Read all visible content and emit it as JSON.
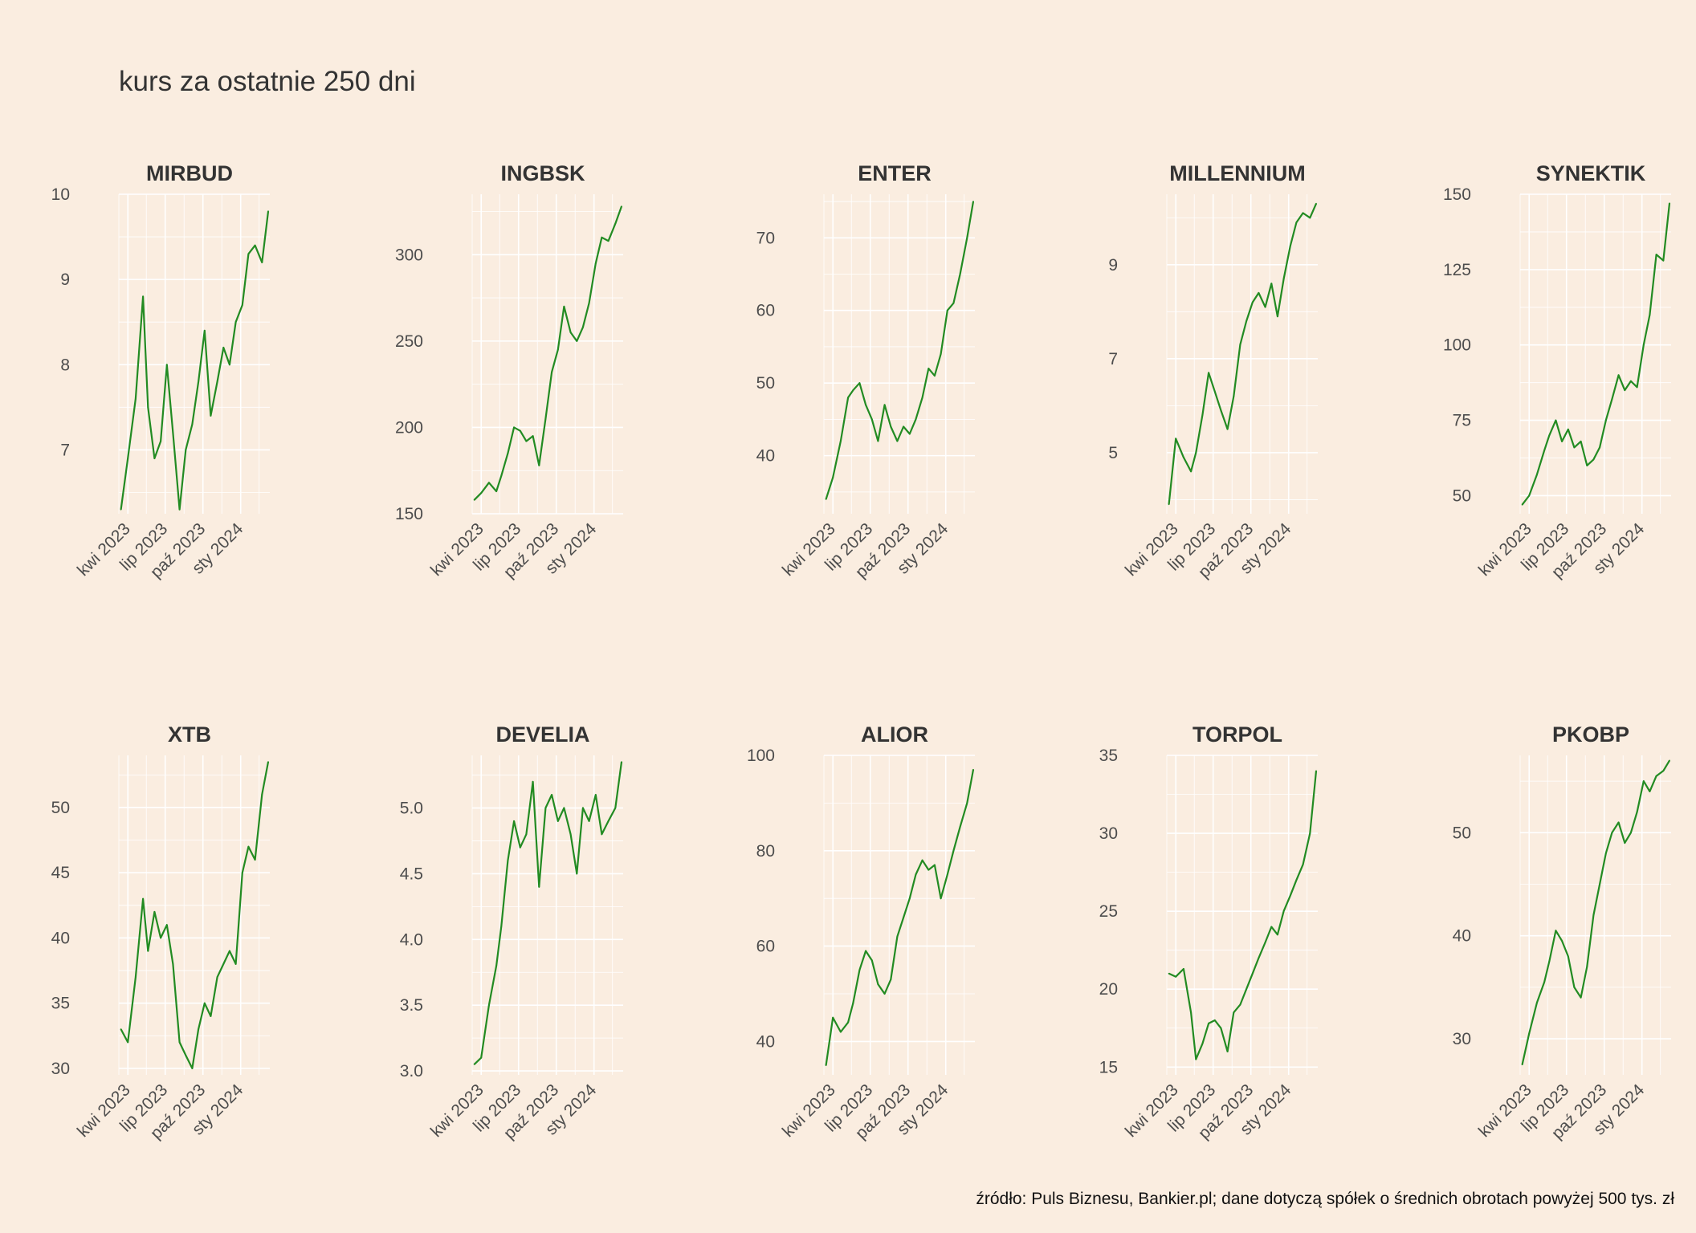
{
  "title": "kurs za ostatnie 250 dni",
  "caption": "źródło: Puls Biznesu, Bankier.pl; dane dotyczą spółek o średnich obrotach powyżej 500 tys. zł",
  "colors": {
    "background": "#FAEDE0",
    "line": "#228B22",
    "grid": "#FFFFFF",
    "text": "#4D4D4D"
  },
  "chart_data": [
    {
      "type": "line",
      "title": "MIRBUD",
      "x_ticks": [
        "kwi 2023",
        "lip 2023",
        "paź 2023",
        "sty 2024"
      ],
      "y_ticks": [
        7,
        8,
        9,
        10
      ],
      "ylim": [
        6.25,
        10
      ],
      "x": [
        "2023-03-15",
        "2023-04-01",
        "2023-04-20",
        "2023-05-08",
        "2023-05-20",
        "2023-06-05",
        "2023-06-20",
        "2023-07-05",
        "2023-07-20",
        "2023-08-05",
        "2023-08-20",
        "2023-09-05",
        "2023-09-20",
        "2023-10-05",
        "2023-10-20",
        "2023-11-05",
        "2023-11-20",
        "2023-12-05",
        "2023-12-20",
        "2024-01-05",
        "2024-01-20",
        "2024-02-05",
        "2024-02-22",
        "2024-03-08"
      ],
      "y": [
        6.3,
        6.9,
        7.6,
        8.8,
        7.5,
        6.9,
        7.1,
        8.0,
        7.2,
        6.3,
        7.0,
        7.3,
        7.8,
        8.4,
        7.4,
        7.8,
        8.2,
        8.0,
        8.5,
        8.7,
        9.3,
        9.4,
        9.2,
        9.8
      ]
    },
    {
      "type": "line",
      "title": "INGBSK",
      "x_ticks": [
        "kwi 2023",
        "lip 2023",
        "paź 2023",
        "sty 2024"
      ],
      "y_ticks": [
        150,
        200,
        250,
        300
      ],
      "ylim": [
        150,
        335
      ],
      "x": [
        "2023-03-15",
        "2023-04-01",
        "2023-04-20",
        "2023-05-08",
        "2023-05-20",
        "2023-06-05",
        "2023-06-20",
        "2023-07-05",
        "2023-07-20",
        "2023-08-05",
        "2023-08-20",
        "2023-09-05",
        "2023-09-20",
        "2023-10-05",
        "2023-10-20",
        "2023-11-05",
        "2023-11-20",
        "2023-12-05",
        "2023-12-20",
        "2024-01-05",
        "2024-01-20",
        "2024-02-05",
        "2024-02-22",
        "2024-03-08"
      ],
      "y": [
        158,
        162,
        168,
        163,
        172,
        185,
        200,
        198,
        192,
        195,
        178,
        205,
        232,
        245,
        270,
        255,
        250,
        258,
        272,
        295,
        310,
        308,
        318,
        328
      ]
    },
    {
      "type": "line",
      "title": "ENTER",
      "x_ticks": [
        "kwi 2023",
        "lip 2023",
        "paź 2023",
        "sty 2024"
      ],
      "y_ticks": [
        40,
        50,
        60,
        70
      ],
      "ylim": [
        32,
        76
      ],
      "x": [
        "2023-03-15",
        "2023-04-01",
        "2023-04-20",
        "2023-05-08",
        "2023-05-20",
        "2023-06-05",
        "2023-06-20",
        "2023-07-05",
        "2023-07-20",
        "2023-08-05",
        "2023-08-20",
        "2023-09-05",
        "2023-09-20",
        "2023-10-05",
        "2023-10-20",
        "2023-11-05",
        "2023-11-20",
        "2023-12-05",
        "2023-12-20",
        "2024-01-05",
        "2024-01-20",
        "2024-02-05",
        "2024-02-22",
        "2024-03-08"
      ],
      "y": [
        34,
        37,
        42,
        48,
        49,
        50,
        47,
        45,
        42,
        47,
        44,
        42,
        44,
        43,
        45,
        48,
        52,
        51,
        54,
        60,
        61,
        65,
        70,
        75
      ]
    },
    {
      "type": "line",
      "title": "MILLENNIUM",
      "x_ticks": [
        "kwi 2023",
        "lip 2023",
        "paź 2023",
        "sty 2024"
      ],
      "y_ticks": [
        5,
        7,
        9
      ],
      "ylim": [
        3.7,
        10.5
      ],
      "x": [
        "2023-03-15",
        "2023-04-01",
        "2023-04-20",
        "2023-05-08",
        "2023-05-20",
        "2023-06-05",
        "2023-06-20",
        "2023-07-05",
        "2023-07-20",
        "2023-08-05",
        "2023-08-20",
        "2023-09-05",
        "2023-09-20",
        "2023-10-05",
        "2023-10-20",
        "2023-11-05",
        "2023-11-20",
        "2023-12-05",
        "2023-12-20",
        "2024-01-05",
        "2024-01-20",
        "2024-02-05",
        "2024-02-22",
        "2024-03-08"
      ],
      "y": [
        3.9,
        5.3,
        4.9,
        4.6,
        5.0,
        5.8,
        6.7,
        6.3,
        5.9,
        5.5,
        6.2,
        7.3,
        7.8,
        8.2,
        8.4,
        8.1,
        8.6,
        7.9,
        8.7,
        9.4,
        9.9,
        10.1,
        10.0,
        10.3
      ]
    },
    {
      "type": "line",
      "title": "SYNEKTIK",
      "x_ticks": [
        "kwi 2023",
        "lip 2023",
        "paź 2023",
        "sty 2024"
      ],
      "y_ticks": [
        50,
        75,
        100,
        125,
        150
      ],
      "ylim": [
        44,
        150
      ],
      "x": [
        "2023-03-15",
        "2023-04-01",
        "2023-04-20",
        "2023-05-08",
        "2023-05-20",
        "2023-06-05",
        "2023-06-20",
        "2023-07-05",
        "2023-07-20",
        "2023-08-05",
        "2023-08-20",
        "2023-09-05",
        "2023-09-20",
        "2023-10-05",
        "2023-10-20",
        "2023-11-05",
        "2023-11-20",
        "2023-12-05",
        "2023-12-20",
        "2024-01-05",
        "2024-01-20",
        "2024-02-05",
        "2024-02-22",
        "2024-03-08"
      ],
      "y": [
        47,
        50,
        57,
        65,
        70,
        75,
        68,
        72,
        66,
        68,
        60,
        62,
        66,
        75,
        82,
        90,
        85,
        88,
        86,
        100,
        110,
        130,
        128,
        147
      ]
    },
    {
      "type": "line",
      "title": "XTB",
      "x_ticks": [
        "kwi 2023",
        "lip 2023",
        "paź 2023",
        "sty 2024"
      ],
      "y_ticks": [
        30,
        35,
        40,
        45,
        50
      ],
      "ylim": [
        29.5,
        54
      ],
      "x": [
        "2023-03-15",
        "2023-04-01",
        "2023-04-20",
        "2023-05-08",
        "2023-05-20",
        "2023-06-05",
        "2023-06-20",
        "2023-07-05",
        "2023-07-20",
        "2023-08-05",
        "2023-08-20",
        "2023-09-05",
        "2023-09-20",
        "2023-10-05",
        "2023-10-20",
        "2023-11-05",
        "2023-11-20",
        "2023-12-05",
        "2023-12-20",
        "2024-01-05",
        "2024-01-20",
        "2024-02-05",
        "2024-02-22",
        "2024-03-08"
      ],
      "y": [
        33,
        32,
        37,
        43,
        39,
        42,
        40,
        41,
        38,
        32,
        31,
        30,
        33,
        35,
        34,
        37,
        38,
        39,
        38,
        45,
        47,
        46,
        51,
        53.5
      ]
    },
    {
      "type": "line",
      "title": "DEVELIA",
      "x_ticks": [
        "kwi 2023",
        "lip 2023",
        "paź 2023",
        "sty 2024"
      ],
      "y_ticks": [
        3.0,
        3.5,
        4.0,
        4.5,
        5.0
      ],
      "ylim": [
        2.97,
        5.4
      ],
      "x": [
        "2023-03-15",
        "2023-04-01",
        "2023-04-20",
        "2023-05-08",
        "2023-05-20",
        "2023-06-05",
        "2023-06-20",
        "2023-07-05",
        "2023-07-20",
        "2023-08-05",
        "2023-08-20",
        "2023-09-05",
        "2023-09-20",
        "2023-10-05",
        "2023-10-20",
        "2023-11-05",
        "2023-11-20",
        "2023-12-05",
        "2023-12-20",
        "2024-01-05",
        "2024-01-20",
        "2024-02-05",
        "2024-02-22",
        "2024-03-08"
      ],
      "y": [
        3.05,
        3.1,
        3.5,
        3.8,
        4.1,
        4.6,
        4.9,
        4.7,
        4.8,
        5.2,
        4.4,
        5.0,
        5.1,
        4.9,
        5.0,
        4.8,
        4.5,
        5.0,
        4.9,
        5.1,
        4.8,
        4.9,
        5.0,
        5.35
      ]
    },
    {
      "type": "line",
      "title": "ALIOR",
      "x_ticks": [
        "kwi 2023",
        "lip 2023",
        "paź 2023",
        "sty 2024"
      ],
      "y_ticks": [
        40,
        60,
        80,
        100
      ],
      "ylim": [
        33,
        100
      ],
      "x": [
        "2023-03-15",
        "2023-04-01",
        "2023-04-20",
        "2023-05-08",
        "2023-05-20",
        "2023-06-05",
        "2023-06-20",
        "2023-07-05",
        "2023-07-20",
        "2023-08-05",
        "2023-08-20",
        "2023-09-05",
        "2023-09-20",
        "2023-10-05",
        "2023-10-20",
        "2023-11-05",
        "2023-11-20",
        "2023-12-05",
        "2023-12-20",
        "2024-01-05",
        "2024-01-20",
        "2024-02-05",
        "2024-02-22",
        "2024-03-08"
      ],
      "y": [
        35,
        45,
        42,
        44,
        48,
        55,
        59,
        57,
        52,
        50,
        53,
        62,
        66,
        70,
        75,
        78,
        76,
        77,
        70,
        75,
        80,
        85,
        90,
        97
      ]
    },
    {
      "type": "line",
      "title": "TORPOL",
      "x_ticks": [
        "kwi 2023",
        "lip 2023",
        "paź 2023",
        "sty 2024"
      ],
      "y_ticks": [
        15,
        20,
        25,
        30,
        35
      ],
      "ylim": [
        14.5,
        35
      ],
      "x": [
        "2023-03-15",
        "2023-04-01",
        "2023-04-20",
        "2023-05-08",
        "2023-05-20",
        "2023-06-05",
        "2023-06-20",
        "2023-07-05",
        "2023-07-20",
        "2023-08-05",
        "2023-08-20",
        "2023-09-05",
        "2023-09-20",
        "2023-10-05",
        "2023-10-20",
        "2023-11-05",
        "2023-11-20",
        "2023-12-05",
        "2023-12-20",
        "2024-01-05",
        "2024-01-20",
        "2024-02-05",
        "2024-02-22",
        "2024-03-08"
      ],
      "y": [
        21,
        20.8,
        21.3,
        18.5,
        15.5,
        16.5,
        17.8,
        18.0,
        17.5,
        16.0,
        18.5,
        19.0,
        20.0,
        21.0,
        22.0,
        23.0,
        24.0,
        23.5,
        25.0,
        26.0,
        27.0,
        28.0,
        30.0,
        34.0
      ]
    },
    {
      "type": "line",
      "title": "PKOBP",
      "x_ticks": [
        "kwi 2023",
        "lip 2023",
        "paź 2023",
        "sty 2024"
      ],
      "y_ticks": [
        30,
        40,
        50
      ],
      "ylim": [
        26.5,
        57.5
      ],
      "x": [
        "2023-03-15",
        "2023-04-01",
        "2023-04-20",
        "2023-05-08",
        "2023-05-20",
        "2023-06-05",
        "2023-06-20",
        "2023-07-05",
        "2023-07-20",
        "2023-08-05",
        "2023-08-20",
        "2023-09-05",
        "2023-09-20",
        "2023-10-05",
        "2023-10-20",
        "2023-11-05",
        "2023-11-20",
        "2023-12-05",
        "2023-12-20",
        "2024-01-05",
        "2024-01-20",
        "2024-02-05",
        "2024-02-22",
        "2024-03-08"
      ],
      "y": [
        27.5,
        30.5,
        33.5,
        35.5,
        37.5,
        40.5,
        39.5,
        38.0,
        35.0,
        34.0,
        37.0,
        42.0,
        45.0,
        48.0,
        50.0,
        51.0,
        49.0,
        50.0,
        52.0,
        55.0,
        54.0,
        55.5,
        56.0,
        57.0
      ]
    }
  ]
}
